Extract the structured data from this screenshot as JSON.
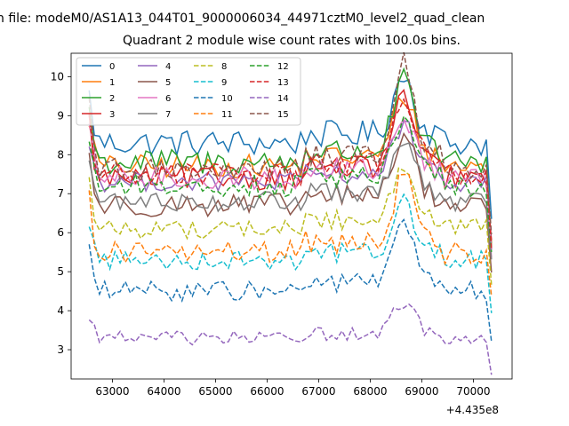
{
  "chart_data": {
    "type": "line",
    "suptitle": "n file: modeM0/AS1A13_044T01_9000006034_44971cztM0_level2_quad_clean",
    "title": "Quadrant 2 module wise count rates with 100.0s bins.",
    "xlabel": "",
    "ylabel": "",
    "x_offset_label": "+4.435e8",
    "x_range": [
      62550,
      70350
    ],
    "xlim": [
      62200,
      70750
    ],
    "ylim": [
      2.25,
      10.6
    ],
    "xticks": [
      "63000",
      "64000",
      "65000",
      "66000",
      "67000",
      "68000",
      "69000",
      "70000"
    ],
    "yticks": [
      "3",
      "4",
      "5",
      "6",
      "7",
      "8",
      "9",
      "10"
    ],
    "grid": false,
    "legend_position": "top-left",
    "legend_columns": 4,
    "series": [
      {
        "name": "0",
        "color": "#1f77b4",
        "dash": "solid",
        "level": 8.3,
        "peak": 9.8,
        "amp": 0.35
      },
      {
        "name": "1",
        "color": "#ff7f0e",
        "dash": "solid",
        "level": 7.7,
        "peak": 9.3,
        "amp": 0.3
      },
      {
        "name": "2",
        "color": "#2ca02c",
        "dash": "solid",
        "level": 7.8,
        "peak": 9.6,
        "amp": 0.35
      },
      {
        "name": "3",
        "color": "#d62728",
        "dash": "solid",
        "level": 7.4,
        "peak": 9.2,
        "amp": 0.3
      },
      {
        "name": "4",
        "color": "#9467bd",
        "dash": "solid",
        "level": 7.3,
        "peak": 8.6,
        "amp": 0.25
      },
      {
        "name": "5",
        "color": "#8c564b",
        "dash": "solid",
        "level": 6.7,
        "peak": 8.3,
        "amp": 0.3
      },
      {
        "name": "6",
        "color": "#e377c2",
        "dash": "solid",
        "level": 7.4,
        "peak": 8.8,
        "amp": 0.3
      },
      {
        "name": "7",
        "color": "#7f7f7f",
        "dash": "solid",
        "level": 6.8,
        "peak": 8.2,
        "amp": 0.25
      },
      {
        "name": "8",
        "color": "#bcbd22",
        "dash": "dashed",
        "level": 6.1,
        "peak": 7.6,
        "amp": 0.25
      },
      {
        "name": "9",
        "color": "#17becf",
        "dash": "dashed",
        "level": 5.3,
        "peak": 6.6,
        "amp": 0.25
      },
      {
        "name": "10",
        "color": "#1f77b4",
        "dash": "dashed",
        "level": 4.5,
        "peak": 6.0,
        "amp": 0.25
      },
      {
        "name": "11",
        "color": "#ff7f0e",
        "dash": "dashed",
        "level": 5.5,
        "peak": 7.2,
        "amp": 0.3
      },
      {
        "name": "12",
        "color": "#2ca02c",
        "dash": "dashed",
        "level": 7.2,
        "peak": 8.8,
        "amp": 0.3
      },
      {
        "name": "13",
        "color": "#d62728",
        "dash": "dashed",
        "level": 7.5,
        "peak": 9.3,
        "amp": 0.3
      },
      {
        "name": "14",
        "color": "#9467bd",
        "dash": "dashed",
        "level": 3.3,
        "peak": 4.1,
        "amp": 0.18
      },
      {
        "name": "15",
        "color": "#8c564b",
        "dash": "dashed",
        "level": 7.6,
        "peak": 10.0,
        "amp": 0.3
      }
    ]
  }
}
